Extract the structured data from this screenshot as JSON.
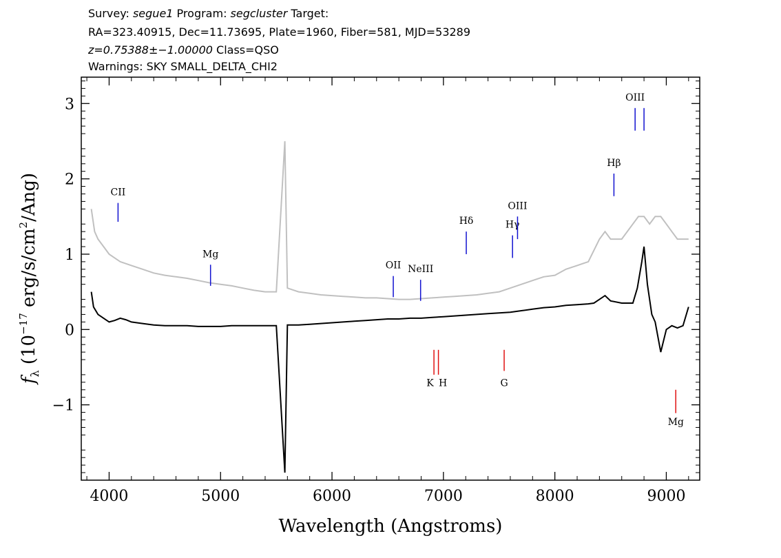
{
  "chart_data": {
    "type": "line",
    "header": {
      "line1": {
        "survey_label": "Survey: ",
        "survey": "segue1",
        "program_label": " Program: ",
        "program": "segcluster",
        "target_label": " Target:"
      },
      "line2": "RA=323.40915, Dec=11.73695, Plate=1960, Fiber=581, MJD=53289",
      "line3": {
        "z": "z=0.75388±−1.00000",
        "class": " Class=QSO"
      },
      "line4": "Warnings: SKY SMALL_DELTA_CHI2"
    },
    "xlabel": "Wavelength (Angstroms)",
    "ylabel": {
      "symbol": "f",
      "sub": "λ",
      "text1": " (10",
      "exp": "−17",
      "text2": " erg/s/cm",
      "exp2": "2",
      "text3": "/Ang)"
    },
    "xlim": [
      3750,
      9300
    ],
    "ylim": [
      -2.0,
      3.35
    ],
    "xticks": [
      4000,
      5000,
      6000,
      7000,
      8000,
      9000
    ],
    "xtick_labels": [
      "4000",
      "5000",
      "6000",
      "7000",
      "8000",
      "9000"
    ],
    "yticks": [
      -1,
      0,
      1,
      2,
      3
    ],
    "ytick_labels": [
      "−1",
      "0",
      "1",
      "2",
      "3"
    ],
    "series": [
      {
        "role": "error",
        "color": "#c0c0c0",
        "x": [
          3840,
          3870,
          3900,
          3950,
          4000,
          4050,
          4100,
          4200,
          4300,
          4400,
          4500,
          4600,
          4700,
          4800,
          4900,
          5000,
          5100,
          5200,
          5300,
          5400,
          5500,
          5577,
          5600,
          5700,
          5800,
          5900,
          6000,
          6100,
          6200,
          6300,
          6400,
          6500,
          6600,
          6700,
          6800,
          6900,
          7000,
          7100,
          7200,
          7300,
          7400,
          7500,
          7600,
          7700,
          7800,
          7900,
          8000,
          8100,
          8200,
          8300,
          8400,
          8450,
          8500,
          8600,
          8700,
          8750,
          8800,
          8850,
          8900,
          8950,
          9000,
          9050,
          9100,
          9150,
          9200
        ],
        "values": [
          1.6,
          1.3,
          1.2,
          1.1,
          1.0,
          0.95,
          0.9,
          0.85,
          0.8,
          0.75,
          0.72,
          0.7,
          0.68,
          0.65,
          0.62,
          0.6,
          0.58,
          0.55,
          0.52,
          0.5,
          0.5,
          2.5,
          0.55,
          0.5,
          0.48,
          0.46,
          0.45,
          0.44,
          0.43,
          0.42,
          0.42,
          0.41,
          0.4,
          0.4,
          0.41,
          0.42,
          0.43,
          0.44,
          0.45,
          0.46,
          0.48,
          0.5,
          0.55,
          0.6,
          0.65,
          0.7,
          0.72,
          0.8,
          0.85,
          0.9,
          1.2,
          1.3,
          1.2,
          1.2,
          1.4,
          1.5,
          1.5,
          1.4,
          1.5,
          1.5,
          1.4,
          1.3,
          1.2,
          1.2,
          1.2
        ]
      },
      {
        "role": "flux",
        "color": "#000000",
        "x": [
          3840,
          3860,
          3900,
          3950,
          4000,
          4050,
          4100,
          4150,
          4200,
          4300,
          4400,
          4500,
          4600,
          4700,
          4800,
          4900,
          5000,
          5100,
          5200,
          5300,
          5400,
          5500,
          5577,
          5600,
          5700,
          5800,
          5900,
          6000,
          6100,
          6200,
          6300,
          6400,
          6500,
          6600,
          6700,
          6800,
          6900,
          7000,
          7100,
          7200,
          7300,
          7400,
          7500,
          7600,
          7700,
          7800,
          7900,
          8000,
          8100,
          8200,
          8300,
          8350,
          8400,
          8450,
          8500,
          8600,
          8700,
          8740,
          8780,
          8800,
          8830,
          8870,
          8900,
          8950,
          9000,
          9050,
          9100,
          9150,
          9200
        ],
        "values": [
          0.5,
          0.3,
          0.2,
          0.15,
          0.1,
          0.12,
          0.15,
          0.13,
          0.1,
          0.08,
          0.06,
          0.05,
          0.05,
          0.05,
          0.04,
          0.04,
          0.04,
          0.05,
          0.05,
          0.05,
          0.05,
          0.05,
          -1.9,
          0.06,
          0.06,
          0.07,
          0.08,
          0.09,
          0.1,
          0.11,
          0.12,
          0.13,
          0.14,
          0.14,
          0.15,
          0.15,
          0.16,
          0.17,
          0.18,
          0.19,
          0.2,
          0.21,
          0.22,
          0.23,
          0.25,
          0.27,
          0.29,
          0.3,
          0.32,
          0.33,
          0.34,
          0.35,
          0.4,
          0.45,
          0.38,
          0.35,
          0.35,
          0.55,
          0.9,
          1.1,
          0.6,
          0.2,
          0.1,
          -0.3,
          0.0,
          0.05,
          0.02,
          0.05,
          0.3
        ]
      }
    ],
    "annotations": {
      "emission": [
        {
          "label": "CII",
          "x": 4080,
          "ymin": 1.43,
          "ymax": 1.68,
          "label_y": 1.78
        },
        {
          "label": "Mg",
          "x": 4910,
          "ymin": 0.58,
          "ymax": 0.86,
          "label_y": 0.96
        },
        {
          "label": "OII",
          "x": 6550,
          "ymin": 0.43,
          "ymax": 0.71,
          "label_y": 0.81
        },
        {
          "label": "NeIII",
          "x": 6795,
          "ymin": 0.38,
          "ymax": 0.66,
          "label_y": 0.76
        },
        {
          "label": "Hδ",
          "x": 7205,
          "ymin": 1.0,
          "ymax": 1.3,
          "label_y": 1.4
        },
        {
          "label": "Hγ",
          "x": 7620,
          "ymin": 0.95,
          "ymax": 1.25,
          "label_y": 1.35
        },
        {
          "label": "OIII",
          "x": 7665,
          "ymin": 1.2,
          "ymax": 1.5,
          "label_y": 1.6
        },
        {
          "label": "Hβ",
          "x": 8530,
          "ymin": 1.77,
          "ymax": 2.07,
          "label_y": 2.17
        },
        {
          "label": "OIII",
          "x": 8720,
          "ymin": 2.64,
          "ymax": 2.94,
          "label_y": 3.04
        },
        {
          "label": "",
          "x": 8800,
          "ymin": 2.64,
          "ymax": 2.94,
          "label_y": 0
        }
      ],
      "absorption": [
        {
          "label": "K",
          "x": 6915,
          "ymin": -0.6,
          "ymax": -0.27,
          "label_x": 6880,
          "label_y": -0.75
        },
        {
          "label": "H",
          "x": 6955,
          "ymin": -0.6,
          "ymax": -0.27,
          "label_x": 6995,
          "label_y": -0.75
        },
        {
          "label": "G",
          "x": 7545,
          "ymin": -0.55,
          "ymax": -0.27,
          "label_x": 7545,
          "label_y": -0.75
        },
        {
          "label": "Mg",
          "x": 9085,
          "ymin": -1.11,
          "ymax": -0.8,
          "label_x": 9085,
          "label_y": -1.27
        }
      ]
    },
    "colors": {
      "emission_line": "#1010d0",
      "absorption_line": "#e01010",
      "error": "#c0c0c0",
      "flux": "#000000",
      "axes": "#000000"
    }
  }
}
